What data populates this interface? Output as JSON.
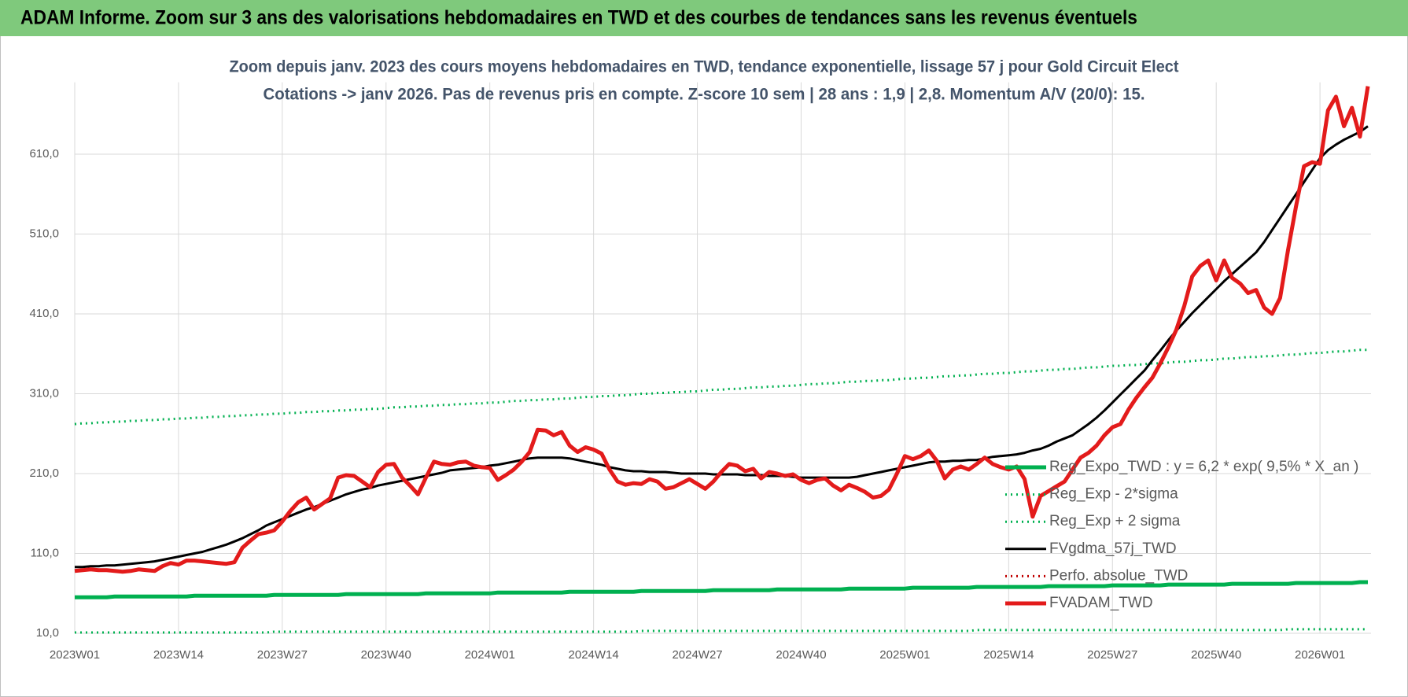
{
  "title": "ADAM Informe. Zoom sur 3 ans des valorisations hebdomadaires en TWD et des courbes de tendances sans les revenus éventuels",
  "chart_data": {
    "type": "line",
    "subtitle": [
      "Zoom depuis janv. 2023 des cours moyens hebdomadaires en TWD, tendance exponentielle, lissage 57 j pour Gold Circuit Elect",
      "Cotations -> janv 2026. Pas de revenus pris en compte. Z-score 10 sem  | 28 ans : 1,9 | 2,8. Momentum A/V (20/0): 15."
    ],
    "categories": [
      "2023W01",
      null,
      null,
      null,
      null,
      null,
      null,
      null,
      null,
      null,
      null,
      null,
      null,
      "2023W14",
      null,
      null,
      null,
      null,
      null,
      null,
      null,
      null,
      null,
      null,
      null,
      null,
      "2023W27",
      null,
      null,
      null,
      null,
      null,
      null,
      null,
      null,
      null,
      null,
      null,
      null,
      "2023W40",
      null,
      null,
      null,
      null,
      null,
      null,
      null,
      null,
      null,
      null,
      null,
      null,
      "2024W01",
      null,
      null,
      null,
      null,
      null,
      null,
      null,
      null,
      null,
      null,
      null,
      null,
      "2024W14",
      null,
      null,
      null,
      null,
      null,
      null,
      null,
      null,
      null,
      null,
      null,
      null,
      "2024W27",
      null,
      null,
      null,
      null,
      null,
      null,
      null,
      null,
      null,
      null,
      null,
      null,
      "2024W40",
      null,
      null,
      null,
      null,
      null,
      null,
      null,
      null,
      null,
      null,
      null,
      null,
      "2025W01",
      null,
      null,
      null,
      null,
      null,
      null,
      null,
      null,
      null,
      null,
      null,
      null,
      "2025W14",
      null,
      null,
      null,
      null,
      null,
      null,
      null,
      null,
      null,
      null,
      null,
      null,
      "2025W27",
      null,
      null,
      null,
      null,
      null,
      null,
      null,
      null,
      null,
      null,
      null,
      null,
      "2025W40",
      null,
      null,
      null,
      null,
      null,
      null,
      null,
      null,
      null,
      null,
      null,
      null,
      "2026W01",
      null,
      null,
      null,
      null,
      null,
      null
    ],
    "ylim": [
      10,
      700
    ],
    "yticks": [
      {
        "value": 10,
        "label": "10,0"
      },
      {
        "value": 110,
        "label": "110,0"
      },
      {
        "value": 210,
        "label": "210,0"
      },
      {
        "value": 310,
        "label": "310,0"
      },
      {
        "value": 410,
        "label": "410,0"
      },
      {
        "value": 510,
        "label": "510,0"
      },
      {
        "value": 610,
        "label": "610,0"
      }
    ],
    "grid": true,
    "legend": "right",
    "series": [
      {
        "name": "Reg_Expo_TWD : y = 6,2 * exp( 9,5% *  X_an )",
        "color": "#00b050",
        "style": "thick",
        "values": [
          55,
          55,
          55,
          55,
          55,
          56,
          56,
          56,
          56,
          56,
          56,
          56,
          56,
          56,
          56,
          57,
          57,
          57,
          57,
          57,
          57,
          57,
          57,
          57,
          57,
          58,
          58,
          58,
          58,
          58,
          58,
          58,
          58,
          58,
          59,
          59,
          59,
          59,
          59,
          59,
          59,
          59,
          59,
          59,
          60,
          60,
          60,
          60,
          60,
          60,
          60,
          60,
          60,
          61,
          61,
          61,
          61,
          61,
          61,
          61,
          61,
          61,
          62,
          62,
          62,
          62,
          62,
          62,
          62,
          62,
          62,
          63,
          63,
          63,
          63,
          63,
          63,
          63,
          63,
          63,
          64,
          64,
          64,
          64,
          64,
          64,
          64,
          64,
          65,
          65,
          65,
          65,
          65,
          65,
          65,
          65,
          65,
          66,
          66,
          66,
          66,
          66,
          66,
          66,
          66,
          67,
          67,
          67,
          67,
          67,
          67,
          67,
          67,
          68,
          68,
          68,
          68,
          68,
          68,
          68,
          68,
          68,
          69,
          69,
          69,
          69,
          69,
          69,
          69,
          69,
          70,
          70,
          70,
          70,
          70,
          70,
          70,
          71,
          71,
          71,
          71,
          71,
          71,
          71,
          71,
          72,
          72,
          72,
          72,
          72,
          72,
          72,
          72,
          73,
          73,
          73,
          73,
          73,
          73,
          73,
          73,
          74,
          74
        ]
      },
      {
        "name": "Reg_Exp - 2*sigma",
        "color": "#00b050",
        "style": "dotted",
        "values": [
          11,
          11,
          11,
          11,
          11,
          11,
          11,
          11,
          11,
          11,
          11,
          11,
          11,
          11,
          11,
          11,
          11,
          11,
          11,
          11,
          11,
          11,
          11,
          11,
          11,
          12,
          12,
          12,
          12,
          12,
          12,
          12,
          12,
          12,
          12,
          12,
          12,
          12,
          12,
          12,
          12,
          12,
          12,
          12,
          12,
          12,
          12,
          12,
          12,
          12,
          12,
          12,
          12,
          12,
          12,
          12,
          12,
          12,
          12,
          12,
          12,
          12,
          12,
          12,
          12,
          12,
          12,
          12,
          12,
          12,
          12,
          13,
          13,
          13,
          13,
          13,
          13,
          13,
          13,
          13,
          13,
          13,
          13,
          13,
          13,
          13,
          13,
          13,
          13,
          13,
          13,
          13,
          13,
          13,
          13,
          13,
          13,
          13,
          13,
          13,
          13,
          13,
          13,
          13,
          13,
          13,
          13,
          13,
          13,
          13,
          13,
          13,
          13,
          14,
          14,
          14,
          14,
          14,
          14,
          14,
          14,
          14,
          14,
          14,
          14,
          14,
          14,
          14,
          14,
          14,
          14,
          14,
          14,
          14,
          14,
          14,
          14,
          14,
          14,
          14,
          14,
          14,
          14,
          14,
          14,
          14,
          14,
          14,
          14,
          14,
          14,
          14,
          15,
          15,
          15,
          15,
          15,
          15,
          15,
          15,
          15,
          15,
          15
        ]
      },
      {
        "name": "Reg_Exp + 2 sigma",
        "color": "#00b050",
        "style": "dotted",
        "values": [
          272,
          273,
          273,
          274,
          274,
          275,
          275,
          276,
          276,
          277,
          277,
          278,
          278,
          279,
          279,
          280,
          280,
          281,
          281,
          282,
          282,
          283,
          283,
          284,
          284,
          285,
          285,
          286,
          286,
          287,
          287,
          288,
          288,
          289,
          289,
          290,
          290,
          291,
          291,
          292,
          293,
          293,
          294,
          294,
          295,
          295,
          296,
          296,
          297,
          297,
          298,
          298,
          299,
          299,
          300,
          301,
          301,
          302,
          302,
          303,
          303,
          304,
          304,
          305,
          306,
          306,
          307,
          307,
          308,
          308,
          309,
          310,
          310,
          311,
          311,
          312,
          312,
          313,
          313,
          314,
          315,
          315,
          316,
          316,
          317,
          318,
          318,
          319,
          319,
          320,
          320,
          321,
          322,
          322,
          323,
          323,
          324,
          325,
          325,
          326,
          326,
          327,
          327,
          328,
          329,
          329,
          330,
          330,
          331,
          332,
          332,
          333,
          333,
          334,
          335,
          335,
          336,
          336,
          337,
          338,
          338,
          339,
          340,
          340,
          341,
          341,
          342,
          343,
          343,
          344,
          345,
          345,
          346,
          346,
          347,
          348,
          348,
          349,
          350,
          350,
          351,
          352,
          352,
          353,
          354,
          354,
          355,
          356,
          356,
          357,
          357,
          358,
          359,
          359,
          360,
          361,
          361,
          362,
          363,
          363,
          364,
          365,
          365
        ]
      },
      {
        "name": "FVgdma_57j_TWD",
        "color": "#000000",
        "style": "solid",
        "values": [
          93,
          93,
          94,
          94,
          95,
          95,
          96,
          97,
          98,
          99,
          100,
          102,
          104,
          106,
          108,
          110,
          112,
          115,
          118,
          121,
          125,
          129,
          134,
          139,
          145,
          149,
          153,
          157,
          161,
          165,
          168,
          172,
          176,
          180,
          184,
          187,
          190,
          192,
          195,
          197,
          199,
          201,
          203,
          205,
          207,
          209,
          211,
          214,
          215,
          216,
          217,
          218,
          220,
          221,
          223,
          225,
          227,
          229,
          230,
          230,
          230,
          230,
          229,
          227,
          225,
          223,
          221,
          218,
          216,
          214,
          213,
          213,
          212,
          212,
          212,
          211,
          210,
          210,
          210,
          210,
          209,
          209,
          209,
          209,
          208,
          208,
          208,
          207,
          207,
          207,
          206,
          205,
          205,
          205,
          205,
          205,
          205,
          205,
          206,
          208,
          210,
          212,
          214,
          216,
          218,
          220,
          222,
          224,
          225,
          225,
          226,
          226,
          227,
          227,
          229,
          231,
          232,
          233,
          234,
          236,
          239,
          241,
          245,
          250,
          254,
          258,
          265,
          272,
          280,
          289,
          299,
          309,
          319,
          329,
          339,
          352,
          364,
          377,
          389,
          400,
          411,
          421,
          431,
          441,
          451,
          460,
          469,
          478,
          487,
          500,
          515,
          530,
          545,
          560,
          575,
          590,
          605,
          615,
          622,
          628,
          633,
          638,
          645
        ]
      },
      {
        "name": "Perfo. absolue_TWD",
        "color": "#c00000",
        "style": "dotted",
        "values": [
          null,
          null,
          null,
          null,
          null,
          null,
          null,
          null,
          null,
          null,
          null,
          null,
          null,
          null,
          null,
          null,
          null,
          null,
          null,
          null,
          null,
          null,
          null,
          null,
          null,
          null,
          null,
          null,
          null,
          null,
          null,
          null,
          null,
          null,
          null,
          null,
          null,
          null,
          null,
          null,
          null,
          null,
          null,
          null,
          null,
          null,
          null,
          null,
          null,
          null,
          null,
          null,
          null,
          null,
          null,
          null,
          null,
          null,
          null,
          null,
          null,
          null,
          null,
          null,
          null,
          null,
          null,
          null,
          null,
          null,
          null,
          null,
          null,
          null,
          null,
          null,
          null,
          null,
          null,
          null,
          null,
          null,
          null,
          null,
          null,
          null,
          null,
          null,
          null,
          null,
          null,
          null,
          null,
          null,
          null,
          null,
          null,
          null,
          null,
          null,
          null,
          null,
          null,
          null,
          null,
          null,
          null,
          null,
          null,
          null,
          null,
          null,
          null,
          null,
          null,
          null,
          null,
          null,
          null,
          null,
          null,
          null,
          null,
          null,
          null,
          null,
          null,
          null,
          null,
          null,
          null,
          null,
          null,
          null,
          null,
          null,
          null,
          null,
          null,
          null,
          null,
          null,
          null,
          null,
          null,
          null,
          null,
          null,
          null,
          null,
          null,
          null,
          null,
          null,
          null,
          null,
          null,
          null,
          null,
          null,
          null,
          null,
          null
        ]
      },
      {
        "name": "FVADAM_TWD",
        "color": "#e31b1b",
        "style": "thick",
        "values": [
          88,
          89,
          90,
          89,
          89,
          88,
          87,
          88,
          90,
          89,
          88,
          94,
          98,
          96,
          101,
          101,
          100,
          99,
          98,
          97,
          99,
          117,
          126,
          134,
          136,
          139,
          150,
          163,
          174,
          180,
          165,
          172,
          179,
          205,
          208,
          207,
          200,
          193,
          212,
          221,
          222,
          205,
          195,
          184,
          205,
          225,
          222,
          221,
          224,
          225,
          220,
          218,
          217,
          202,
          208,
          215,
          225,
          237,
          265,
          264,
          258,
          262,
          245,
          237,
          243,
          240,
          235,
          215,
          200,
          196,
          198,
          197,
          203,
          200,
          191,
          193,
          198,
          203,
          197,
          191,
          200,
          212,
          222,
          220,
          213,
          216,
          204,
          212,
          210,
          207,
          209,
          202,
          198,
          202,
          204,
          195,
          189,
          196,
          192,
          187,
          180,
          182,
          190,
          210,
          232,
          228,
          232,
          239,
          226,
          204,
          215,
          219,
          215,
          222,
          230,
          222,
          218,
          215,
          219,
          203,
          156,
          182,
          188,
          194,
          200,
          215,
          230,
          236,
          245,
          258,
          268,
          272,
          290,
          305,
          318,
          330,
          348,
          368,
          390,
          420,
          457,
          470,
          477,
          452,
          477,
          455,
          448,
          436,
          440,
          418,
          410,
          430,
          490,
          545,
          595,
          600,
          598,
          665,
          682,
          645,
          668,
          632,
          695
        ]
      }
    ]
  }
}
